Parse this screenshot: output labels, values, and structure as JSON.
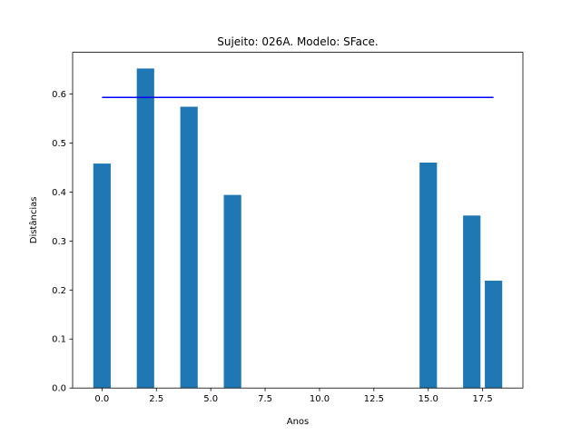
{
  "chart_data": {
    "type": "bar",
    "title": "Sujeito: 026A. Modelo: SFace.",
    "xlabel": "Anos",
    "ylabel": "Distâncias",
    "bars": [
      {
        "x": 0,
        "value": 0.458
      },
      {
        "x": 2,
        "value": 0.652
      },
      {
        "x": 4,
        "value": 0.574
      },
      {
        "x": 6,
        "value": 0.394
      },
      {
        "x": 15,
        "value": 0.46
      },
      {
        "x": 17,
        "value": 0.352
      },
      {
        "x": 18,
        "value": 0.219
      }
    ],
    "bar_width": 0.8,
    "threshold_line": {
      "y": 0.593,
      "x_start": 0,
      "x_end": 18,
      "color": "#0000ff"
    },
    "xlim": [
      -1.35,
      19.35
    ],
    "ylim": [
      0,
      0.685
    ],
    "xticks": [
      0.0,
      2.5,
      5.0,
      7.5,
      10.0,
      12.5,
      15.0,
      17.5
    ],
    "xtick_labels": [
      "0.0",
      "2.5",
      "5.0",
      "7.5",
      "10.0",
      "12.5",
      "15.0",
      "17.5"
    ],
    "yticks": [
      0.0,
      0.1,
      0.2,
      0.3,
      0.4,
      0.5,
      0.6
    ],
    "ytick_labels": [
      "0.0",
      "0.1",
      "0.2",
      "0.3",
      "0.4",
      "0.5",
      "0.6"
    ],
    "bar_color": "#1f77b4",
    "grid": false,
    "legend": "none"
  }
}
